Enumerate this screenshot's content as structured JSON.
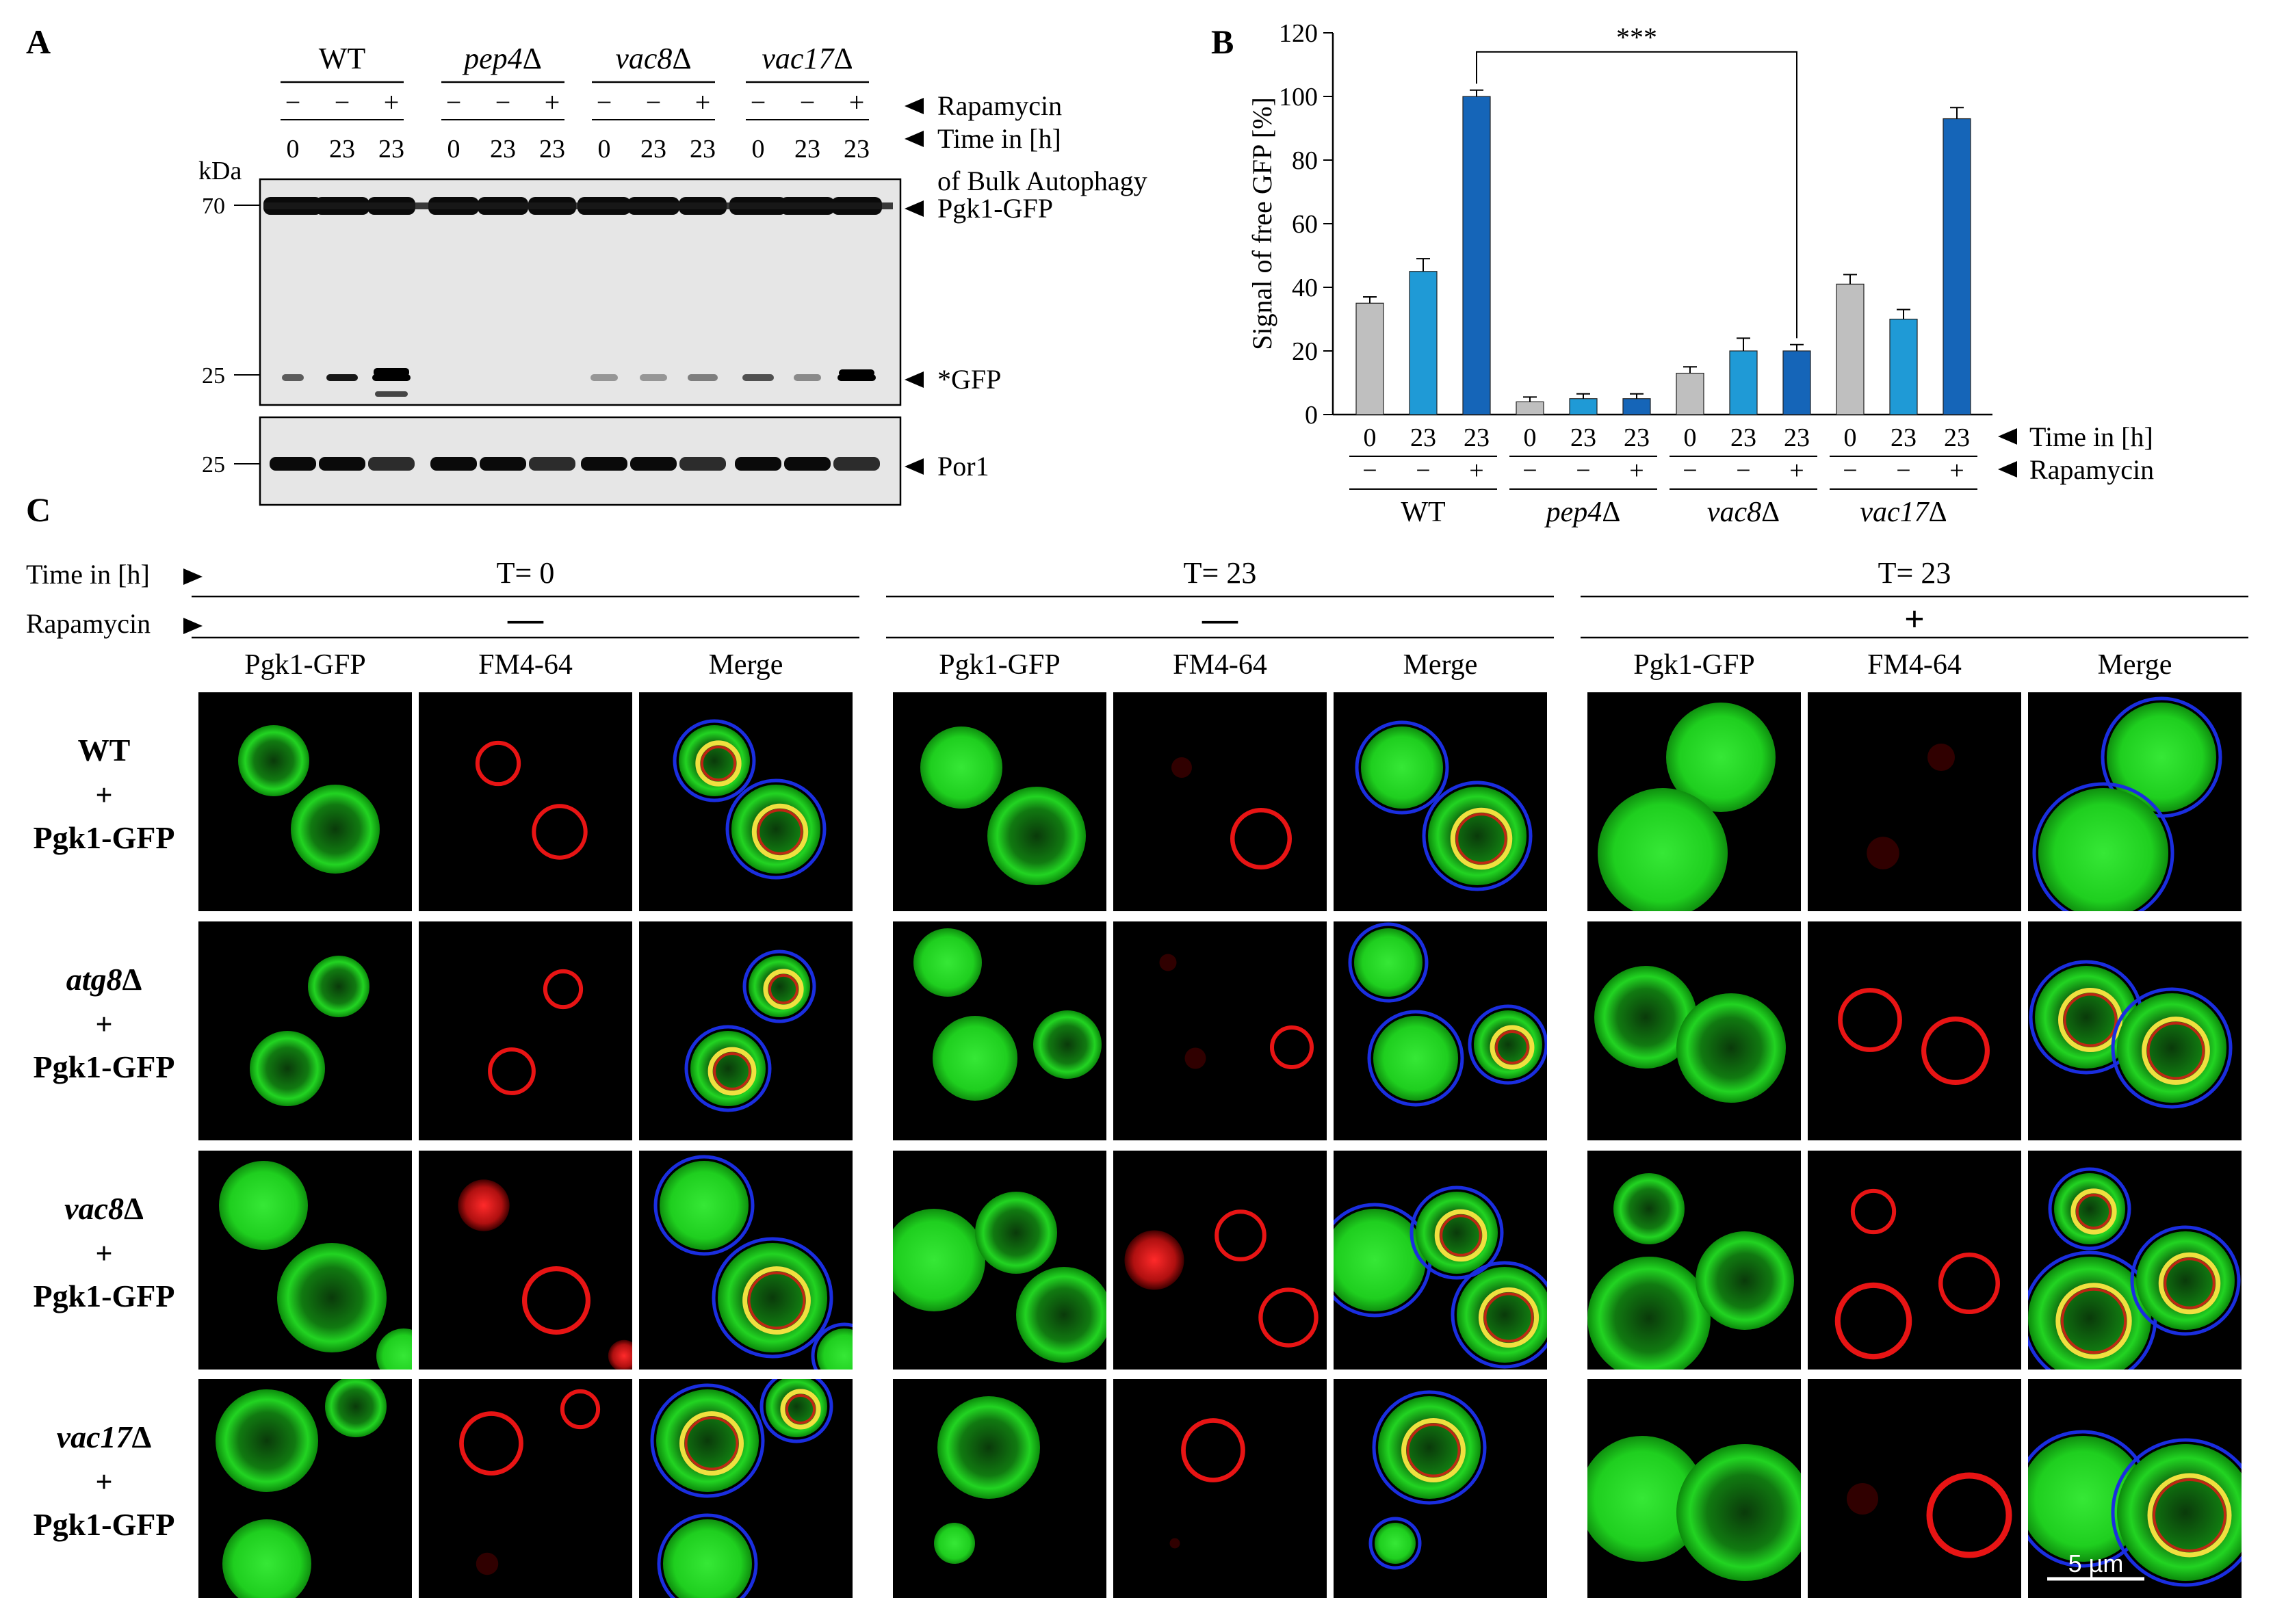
{
  "panel_labels": {
    "a": "A",
    "b": "B",
    "c": "C"
  },
  "blot": {
    "strains": [
      "WT",
      "pep4Δ",
      "vac8Δ",
      "vac17Δ"
    ],
    "rapamycin": [
      "−",
      "−",
      "+",
      "−",
      "−",
      "+",
      "−",
      "−",
      "+",
      "−",
      "−",
      "+"
    ],
    "time": [
      "0",
      "23",
      "23",
      "0",
      "23",
      "23",
      "0",
      "23",
      "23",
      "0",
      "23",
      "23"
    ],
    "row_labels": {
      "rapamycin": "Rapamycin",
      "time": "Time in [h]",
      "time_sub": "of Bulk Autophagy"
    },
    "kda_label": "kDa",
    "markers": [
      "70",
      "25",
      "25"
    ],
    "bands": {
      "pgk1": "Pgk1-GFP",
      "gfp": "*GFP",
      "por1": "Por1"
    }
  },
  "chart_data": {
    "type": "bar",
    "ylabel": "Signal of free GFP [%]",
    "ylim": [
      0,
      120
    ],
    "yticks": [
      0,
      20,
      40,
      60,
      80,
      100,
      120
    ],
    "categories": [
      "WT 0",
      "WT 23",
      "WT 23+",
      "pep4 0",
      "pep4 23",
      "pep4 23+",
      "vac8 0",
      "vac8 23",
      "vac8 23+",
      "vac17 0",
      "vac17 23",
      "vac17 23+"
    ],
    "values": [
      35,
      45,
      100,
      4,
      5,
      5,
      13,
      20,
      20,
      41,
      30,
      93
    ],
    "errors": [
      2,
      4,
      2,
      1.5,
      1.5,
      1.5,
      2,
      4,
      2,
      3,
      3,
      3.5
    ],
    "bar_colors": [
      "#bfbfbf",
      "#1f9ad6",
      "#1565b8",
      "#bfbfbf",
      "#1f9ad6",
      "#1565b8",
      "#bfbfbf",
      "#1f9ad6",
      "#1565b8",
      "#bfbfbf",
      "#1f9ad6",
      "#1565b8"
    ],
    "time_labels": [
      "0",
      "23",
      "23",
      "0",
      "23",
      "23",
      "0",
      "23",
      "23",
      "0",
      "23",
      "23"
    ],
    "rapamycin_labels": [
      "−",
      "−",
      "+",
      "−",
      "−",
      "+",
      "−",
      "−",
      "+",
      "−",
      "−",
      "+"
    ],
    "groups": [
      "WT",
      "pep4Δ",
      "vac8Δ",
      "vac17Δ"
    ],
    "row_labels": {
      "time": "Time in [h]",
      "rapamycin": "Rapamycin"
    },
    "significance": "***"
  },
  "micro": {
    "time_label": "Time in [h]",
    "rapamycin_label": "Rapamycin",
    "conditions": [
      {
        "time": "T= 0",
        "rapamycin": "—"
      },
      {
        "time": "T= 23",
        "rapamycin": "—"
      },
      {
        "time": "T= 23",
        "rapamycin": "+"
      }
    ],
    "channels": [
      "Pgk1-GFP",
      "FM4-64",
      "Merge"
    ],
    "strains": [
      {
        "name": "WT",
        "plus": "+",
        "reporter": "Pgk1-GFP"
      },
      {
        "name": "atg8Δ",
        "plus": "+",
        "reporter": "Pgk1-GFP"
      },
      {
        "name": "vac8Δ",
        "plus": "+",
        "reporter": "Pgk1-GFP"
      },
      {
        "name": "vac17Δ",
        "plus": "+",
        "reporter": "Pgk1-GFP"
      }
    ],
    "scale_bar": "5 µm"
  },
  "colors": {
    "gfp": "#1ed21e",
    "fm464": "#e81414",
    "outline": "#1a2ee0",
    "merge_yellow": "#f0e040"
  }
}
